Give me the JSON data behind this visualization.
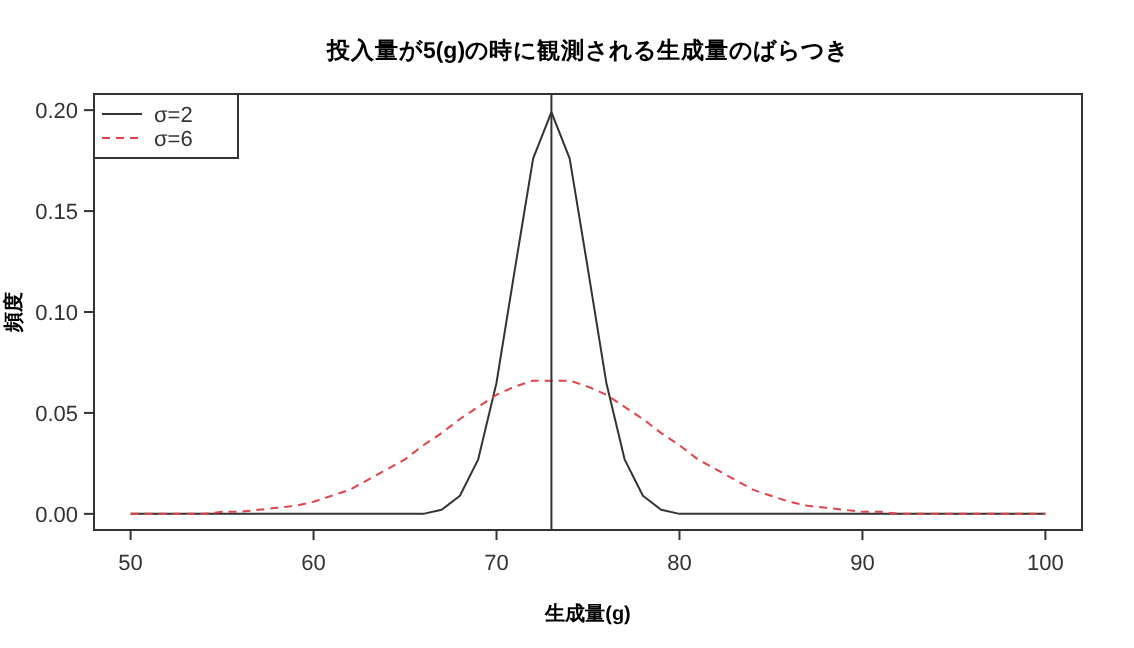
{
  "chart_data": {
    "type": "line",
    "title": "投入量が5(g)の時に観測される生成量のばらつき",
    "xlabel": "生成量(g)",
    "ylabel": "頻度",
    "x": [
      50,
      51,
      52,
      53,
      54,
      55,
      56,
      57,
      58,
      59,
      60,
      61,
      62,
      63,
      64,
      65,
      66,
      67,
      68,
      69,
      70,
      71,
      72,
      73,
      74,
      75,
      76,
      77,
      78,
      79,
      80,
      81,
      82,
      83,
      84,
      85,
      86,
      87,
      88,
      89,
      90,
      91,
      92,
      93,
      94,
      95,
      96,
      97,
      98,
      99,
      100
    ],
    "series": [
      {
        "name": "σ=2",
        "color": "#333333",
        "line_style": "solid",
        "values": [
          0,
          0,
          0,
          0,
          0,
          0,
          0,
          0,
          0,
          0,
          0,
          0,
          0,
          0,
          0,
          0,
          0,
          0.002,
          0.009,
          0.027,
          0.065,
          0.121,
          0.176,
          0.199,
          0.176,
          0.121,
          0.065,
          0.027,
          0.009,
          0.002,
          0,
          0,
          0,
          0,
          0,
          0,
          0,
          0,
          0,
          0,
          0,
          0,
          0,
          0,
          0,
          0,
          0,
          0,
          0,
          0,
          0
        ]
      },
      {
        "name": "σ=6",
        "color": "#e0434b",
        "line_style": "dashed",
        "values": [
          0,
          0,
          0,
          0,
          0,
          0.001,
          0.001,
          0.002,
          0.003,
          0.004,
          0.006,
          0.009,
          0.012,
          0.017,
          0.022,
          0.027,
          0.034,
          0.04,
          0.047,
          0.053,
          0.059,
          0.063,
          0.066,
          0.066,
          0.066,
          0.063,
          0.059,
          0.053,
          0.047,
          0.04,
          0.034,
          0.027,
          0.022,
          0.017,
          0.012,
          0.009,
          0.006,
          0.004,
          0.003,
          0.002,
          0.001,
          0.001,
          0,
          0,
          0,
          0,
          0,
          0,
          0,
          0,
          0
        ]
      }
    ],
    "xlim": [
      48,
      102
    ],
    "xticks": [
      50,
      60,
      70,
      80,
      90,
      100
    ],
    "ylim": [
      -0.008,
      0.208
    ],
    "yticks": [
      {
        "value": 0,
        "label": "0.00"
      },
      {
        "value": 0.05,
        "label": "0.05"
      },
      {
        "value": 0.1,
        "label": "0.10"
      },
      {
        "value": 0.15,
        "label": "0.15"
      },
      {
        "value": 0.2,
        "label": "0.20"
      }
    ],
    "ref_lines": [
      {
        "axis": "x",
        "value": 73,
        "color": "#333333"
      }
    ],
    "grid": false,
    "legend": "top left"
  }
}
